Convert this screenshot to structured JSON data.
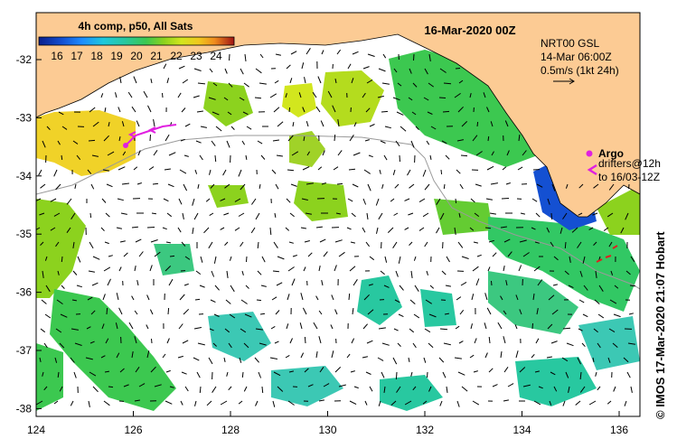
{
  "map": {
    "title": "16-Mar-2020 00Z",
    "colorbar": {
      "caption": "4h comp, p50, All Sats",
      "ticks": [
        "16",
        "17",
        "18",
        "19",
        "20",
        "21",
        "22",
        "23",
        "24"
      ],
      "colors": [
        "#0a1e8c",
        "#1450d2",
        "#1e8cff",
        "#1ec8dc",
        "#28c8a0",
        "#3cc850",
        "#8cd21e",
        "#d2e61e",
        "#f0c81e",
        "#f08c1e",
        "#e0501e",
        "#a01414"
      ]
    },
    "overlay": {
      "line1": "NRT00 GSL",
      "line2": "14-Mar 06:00Z",
      "line3": "0.5m/s (1kt 24h)"
    },
    "legend": {
      "argo_label": "Argo",
      "drifters_line1": "drifters@12h",
      "drifters_line2": "to 16/03-12Z",
      "argo_color": "#e020e0",
      "land_color": "#fccb94"
    },
    "credit": "© IMOS 17-Mar-2020 21:07 Hobart",
    "x_ticks": [
      "124",
      "126",
      "128",
      "130",
      "132",
      "134",
      "136"
    ],
    "y_ticks": [
      "-32",
      "-33",
      "-34",
      "-35",
      "-36",
      "-37",
      "-38"
    ]
  }
}
